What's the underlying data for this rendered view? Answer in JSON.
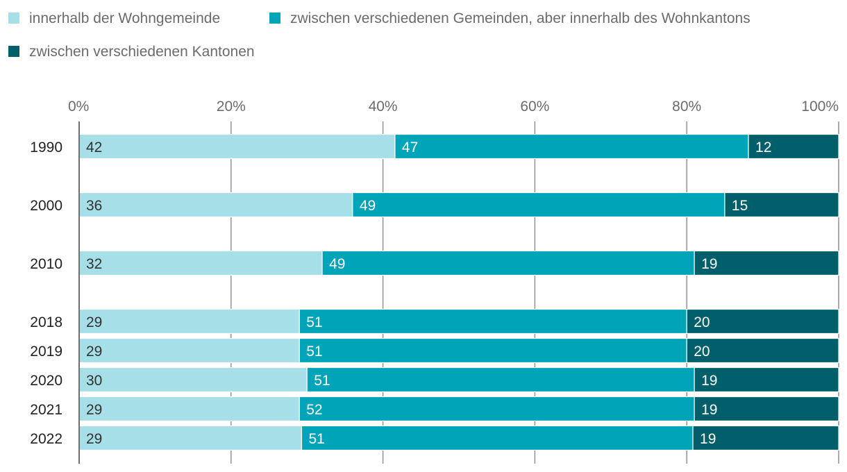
{
  "chart_data": {
    "type": "bar",
    "orientation": "horizontal",
    "stacked": true,
    "categories": [
      "1990",
      "2000",
      "2010",
      "2018",
      "2019",
      "2020",
      "2021",
      "2022"
    ],
    "series": [
      {
        "name": "innerhalb der Wohngemeinde",
        "color": "#a6dfe8",
        "label_color": "#333333",
        "values": [
          42,
          36,
          32,
          29,
          29,
          30,
          29,
          29
        ]
      },
      {
        "name": "zwischen verschiedenen Gemeinden, aber innerhalb des Wohnkantons",
        "color": "#00a4b9",
        "label_color": "#ffffff",
        "values": [
          47,
          49,
          49,
          51,
          51,
          51,
          52,
          51
        ]
      },
      {
        "name": "zwischen verschiedenen Kantonen",
        "color": "#005f6a",
        "label_color": "#ffffff",
        "values": [
          12,
          15,
          19,
          20,
          20,
          19,
          19,
          19
        ]
      }
    ],
    "xticks": [
      "0%",
      "20%",
      "40%",
      "60%",
      "80%",
      "100%"
    ],
    "xlim": [
      0,
      100
    ],
    "grid": true,
    "legend_position": "top-left"
  }
}
